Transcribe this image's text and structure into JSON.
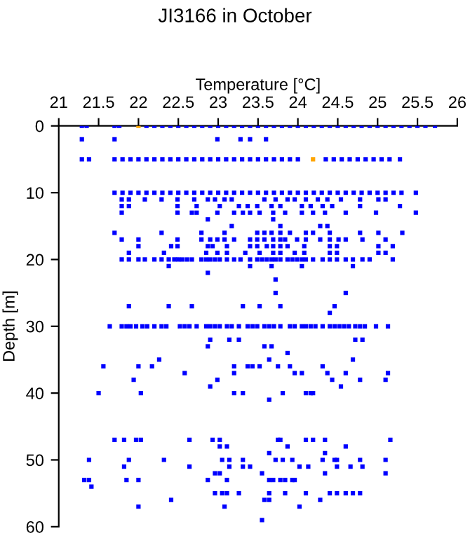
{
  "chart_data": {
    "type": "scatter",
    "title": "JI3166 in October",
    "xlabel": "Temperature [°C]",
    "ylabel": "Depth [m]",
    "xlim": [
      21,
      26
    ],
    "xticks": [
      21,
      21.5,
      22,
      22.5,
      23,
      23.5,
      24,
      24.5,
      25,
      25.5,
      26
    ],
    "ylim": [
      60,
      0
    ],
    "yticks": [
      0,
      10,
      20,
      30,
      40,
      50,
      60
    ],
    "grid": false,
    "marker": "square",
    "series": [
      {
        "color": "#0000ff",
        "x": [
          21.29,
          21.35,
          21.7,
          21.76,
          22.1,
          22.2,
          22.3,
          22.4,
          22.5,
          22.6,
          22.7,
          22.8,
          22.9,
          23.0,
          23.1,
          23.2,
          23.3,
          23.4,
          23.5,
          23.6,
          23.7,
          23.8,
          23.9,
          24.0,
          24.1,
          24.2,
          24.3,
          24.4,
          24.5,
          24.6,
          24.7,
          24.8,
          24.9,
          25.0,
          25.1,
          25.2,
          25.3,
          25.4,
          25.5,
          25.6,
          25.72,
          21.29,
          21.7,
          22.99,
          23.28,
          23.4,
          23.6,
          21.29,
          21.38,
          21.7,
          21.8,
          21.9,
          22.0,
          22.1,
          22.2,
          22.3,
          22.4,
          22.5,
          22.6,
          22.7,
          22.8,
          22.9,
          23.0,
          23.1,
          23.2,
          23.3,
          23.4,
          23.5,
          23.6,
          23.7,
          23.8,
          23.9,
          24.0,
          24.35,
          24.45,
          24.55,
          24.65,
          24.75,
          24.85,
          24.95,
          25.05,
          25.15,
          25.28,
          21.7,
          21.8,
          21.9,
          22.0,
          22.1,
          22.2,
          22.3,
          22.4,
          22.5,
          22.6,
          22.7,
          22.8,
          22.9,
          23.0,
          23.1,
          23.2,
          23.3,
          23.4,
          23.5,
          23.6,
          23.7,
          23.8,
          23.9,
          24.0,
          24.1,
          24.2,
          24.3,
          24.4,
          24.5,
          24.6,
          24.7,
          24.8,
          24.9,
          25.0,
          25.1,
          25.2,
          25.3,
          25.48,
          21.79,
          21.88,
          22.08,
          22.29,
          22.49,
          22.7,
          22.87,
          22.96,
          23.08,
          23.17,
          23.58,
          23.72,
          23.87,
          23.96,
          24.1,
          24.25,
          24.37,
          24.54,
          24.78,
          25.01,
          25.1,
          21.79,
          21.88,
          22.49,
          22.73,
          23.02,
          23.26,
          23.37,
          23.49,
          23.67,
          23.78,
          24.05,
          24.16,
          24.31,
          24.43,
          24.78,
          25.28,
          21.79,
          22.49,
          22.67,
          22.73,
          22.99,
          23.2,
          23.31,
          23.4,
          23.52,
          23.69,
          23.84,
          24.05,
          24.19,
          24.34,
          24.6,
          24.98,
          25.48,
          22.87,
          23.69,
          23.17,
          23.78,
          24.28,
          24.37,
          21.7,
          22.29,
          22.79,
          23.08,
          23.49,
          23.58,
          23.67,
          23.78,
          23.9,
          24.1,
          24.19,
          24.4,
          24.78,
          25.01,
          25.31,
          21.79,
          22.0,
          22.49,
          22.79,
          22.9,
          22.99,
          23.08,
          23.2,
          23.4,
          23.49,
          23.58,
          23.69,
          23.78,
          23.84,
          23.99,
          24.1,
          24.28,
          24.4,
          24.51,
          24.6,
          24.81,
          25.1,
          22.0,
          22.41,
          22.49,
          22.87,
          22.93,
          23.11,
          23.4,
          23.49,
          23.61,
          23.69,
          23.78,
          23.87,
          24.08,
          24.4,
          24.49,
          25.01,
          25.19,
          21.88,
          22.32,
          22.85,
          22.99,
          23.11,
          23.34,
          23.52,
          23.69,
          23.78,
          23.96,
          24.08,
          24.4,
          24.49,
          25.01,
          25.1,
          21.79,
          21.88,
          22.0,
          22.08,
          22.2,
          22.29,
          22.38,
          22.45,
          22.5,
          22.55,
          22.61,
          22.67,
          22.79,
          22.85,
          22.9,
          22.96,
          23.02,
          23.11,
          23.2,
          23.28,
          23.4,
          23.49,
          23.55,
          23.61,
          23.67,
          23.72,
          23.78,
          23.87,
          23.93,
          23.99,
          24.05,
          24.1,
          24.19,
          24.31,
          24.4,
          24.49,
          24.6,
          24.69,
          24.81,
          24.9,
          25.19,
          22.38,
          23.4,
          23.67,
          24.05,
          24.69,
          22.87,
          23.72,
          23.72,
          24.6,
          21.88,
          22.38,
          22.67,
          23.31,
          23.52,
          23.78,
          24.46,
          24.4,
          21.64,
          21.79,
          21.85,
          21.9,
          21.97,
          22.05,
          22.11,
          22.2,
          22.29,
          22.35,
          22.52,
          22.58,
          22.64,
          22.73,
          22.85,
          22.9,
          22.96,
          23.02,
          23.11,
          23.17,
          23.26,
          23.37,
          23.43,
          23.49,
          23.58,
          23.64,
          23.7,
          23.78,
          23.9,
          23.96,
          24.05,
          24.1,
          24.16,
          24.22,
          24.31,
          24.4,
          24.46,
          24.52,
          24.58,
          24.64,
          24.72,
          24.78,
          24.84,
          24.98,
          25.13,
          22.9,
          23.14,
          23.26,
          24.72,
          24.81,
          22.87,
          23.58,
          23.67,
          23.87,
          22.26,
          23.64,
          24.69,
          21.56,
          22.0,
          22.17,
          23.2,
          23.37,
          23.43,
          23.52,
          23.75,
          23.9,
          24.31,
          22.58,
          23.2,
          23.96,
          24.05,
          24.37,
          24.6,
          25.13,
          21.94,
          22.99,
          24.43,
          24.78,
          25.1,
          22.9,
          24.54,
          21.5,
          22.03,
          23.2,
          23.31,
          23.81,
          24.1,
          24.16,
          24.19,
          23.64,
          21.7,
          21.82,
          21.97,
          22.03,
          22.64,
          22.93,
          23.02,
          23.75,
          23.78,
          24.1,
          24.19,
          24.34,
          25.16,
          23.02,
          23.11,
          23.87,
          24.6,
          23.64,
          24.34,
          21.38,
          21.88,
          22.32,
          23.05,
          23.14,
          23.31,
          23.72,
          23.81,
          23.93,
          24.31,
          24.46,
          24.49,
          24.78,
          25.1,
          21.82,
          22.64,
          23.14,
          23.31,
          23.4,
          24.02,
          24.13,
          24.49,
          24.66,
          24.81,
          22.96,
          23.02,
          23.55,
          24.34,
          25.1,
          21.32,
          21.38,
          21.85,
          22.0,
          22.87,
          23.11,
          23.64,
          23.69,
          23.78,
          23.84,
          23.93,
          23.96,
          21.41,
          22.96,
          23.05,
          23.11,
          23.26,
          23.64,
          23.84,
          24.1,
          24.4,
          24.49,
          24.6,
          24.69,
          24.78,
          22.41,
          23.58,
          23.64,
          24.28,
          22.0,
          23.08,
          24.02,
          23.55
        ],
        "values": [
          0,
          0,
          0,
          0,
          0,
          0,
          0,
          0,
          0,
          0,
          0,
          0,
          0,
          0,
          0,
          0,
          0,
          0,
          0,
          0,
          0,
          0,
          0,
          0,
          0,
          0,
          0,
          0,
          0,
          0,
          0,
          0,
          0,
          0,
          0,
          0,
          0,
          0,
          0,
          0,
          0,
          2,
          2,
          2,
          2,
          2,
          2,
          5,
          5,
          5,
          5,
          5,
          5,
          5,
          5,
          5,
          5,
          5,
          5,
          5,
          5,
          5,
          5,
          5,
          5,
          5,
          5,
          5,
          5,
          5,
          5,
          5,
          5,
          5,
          5,
          5,
          5,
          5,
          5,
          5,
          5,
          5,
          5,
          10,
          10,
          10,
          10,
          10,
          10,
          10,
          10,
          10,
          10,
          10,
          10,
          10,
          10,
          10,
          10,
          10,
          10,
          10,
          10,
          10,
          10,
          10,
          10,
          10,
          10,
          10,
          10,
          10,
          10,
          10,
          10,
          10,
          10,
          10,
          10,
          10,
          10,
          11,
          11,
          11,
          11,
          11,
          11,
          11,
          11,
          11,
          11,
          11,
          11,
          11,
          11,
          11,
          11,
          11,
          11,
          11,
          11,
          11,
          12,
          12,
          12,
          12,
          12,
          12,
          12,
          12,
          12,
          12,
          12,
          12,
          12,
          12,
          12,
          12,
          13,
          13,
          13,
          13,
          13,
          13,
          13,
          13,
          13,
          13,
          13,
          13,
          13,
          13,
          13,
          13,
          13,
          14,
          14,
          15,
          15,
          15,
          15,
          16,
          16,
          16,
          16,
          16,
          16,
          16,
          16,
          16,
          16,
          16,
          16,
          16,
          16,
          16,
          17,
          17,
          17,
          17,
          17,
          17,
          17,
          17,
          17,
          17,
          17,
          17,
          17,
          17,
          17,
          17,
          17,
          17,
          17,
          17,
          17,
          17,
          18,
          18,
          18,
          18,
          18,
          18,
          18,
          18,
          18,
          18,
          18,
          18,
          18,
          18,
          18,
          18,
          18,
          19,
          19,
          19,
          19,
          19,
          19,
          19,
          19,
          19,
          19,
          19,
          19,
          19,
          19,
          19,
          20,
          20,
          20,
          20,
          20,
          20,
          20,
          20,
          20,
          20,
          20,
          20,
          20,
          20,
          20,
          20,
          20,
          20,
          20,
          20,
          20,
          20,
          20,
          20,
          20,
          20,
          20,
          20,
          20,
          20,
          20,
          20,
          20,
          20,
          20,
          20,
          20,
          20,
          20,
          20,
          20,
          21,
          21,
          21,
          21,
          21,
          22,
          23,
          25,
          25,
          27,
          27,
          27,
          27,
          27,
          27,
          27,
          28,
          30,
          30,
          30,
          30,
          30,
          30,
          30,
          30,
          30,
          30,
          30,
          30,
          30,
          30,
          30,
          30,
          30,
          30,
          30,
          30,
          30,
          30,
          30,
          30,
          30,
          30,
          30,
          30,
          30,
          30,
          30,
          30,
          30,
          30,
          30,
          30,
          30,
          30,
          30,
          30,
          30,
          30,
          30,
          30,
          30,
          32,
          32,
          32,
          32,
          32,
          33,
          33,
          33,
          34,
          35,
          35,
          35,
          36,
          36,
          36,
          36,
          36,
          36,
          36,
          36,
          36,
          36,
          37,
          37,
          37,
          37,
          37,
          37,
          37,
          38,
          38,
          38,
          38,
          38,
          39,
          39,
          40,
          40,
          40,
          40,
          40,
          40,
          40,
          40,
          41,
          47,
          47,
          47,
          47,
          47,
          47,
          47,
          47,
          47,
          47,
          47,
          47,
          47,
          48,
          48,
          48,
          48,
          49,
          49,
          50,
          50,
          50,
          50,
          50,
          50,
          50,
          50,
          50,
          50,
          50,
          50,
          50,
          50,
          51,
          51,
          51,
          51,
          51,
          51,
          51,
          51,
          51,
          51,
          52,
          52,
          52,
          52,
          52,
          53,
          53,
          53,
          53,
          53,
          53,
          53,
          53,
          53,
          53,
          53,
          53,
          54,
          55,
          55,
          55,
          55,
          55,
          55,
          55,
          55,
          55,
          55,
          55,
          55,
          56,
          56,
          56,
          56,
          57,
          57,
          57,
          59
        ]
      },
      {
        "color": "#ffa500",
        "x": [
          22.0,
          24.19
        ],
        "values": [
          0,
          5
        ]
      }
    ]
  }
}
